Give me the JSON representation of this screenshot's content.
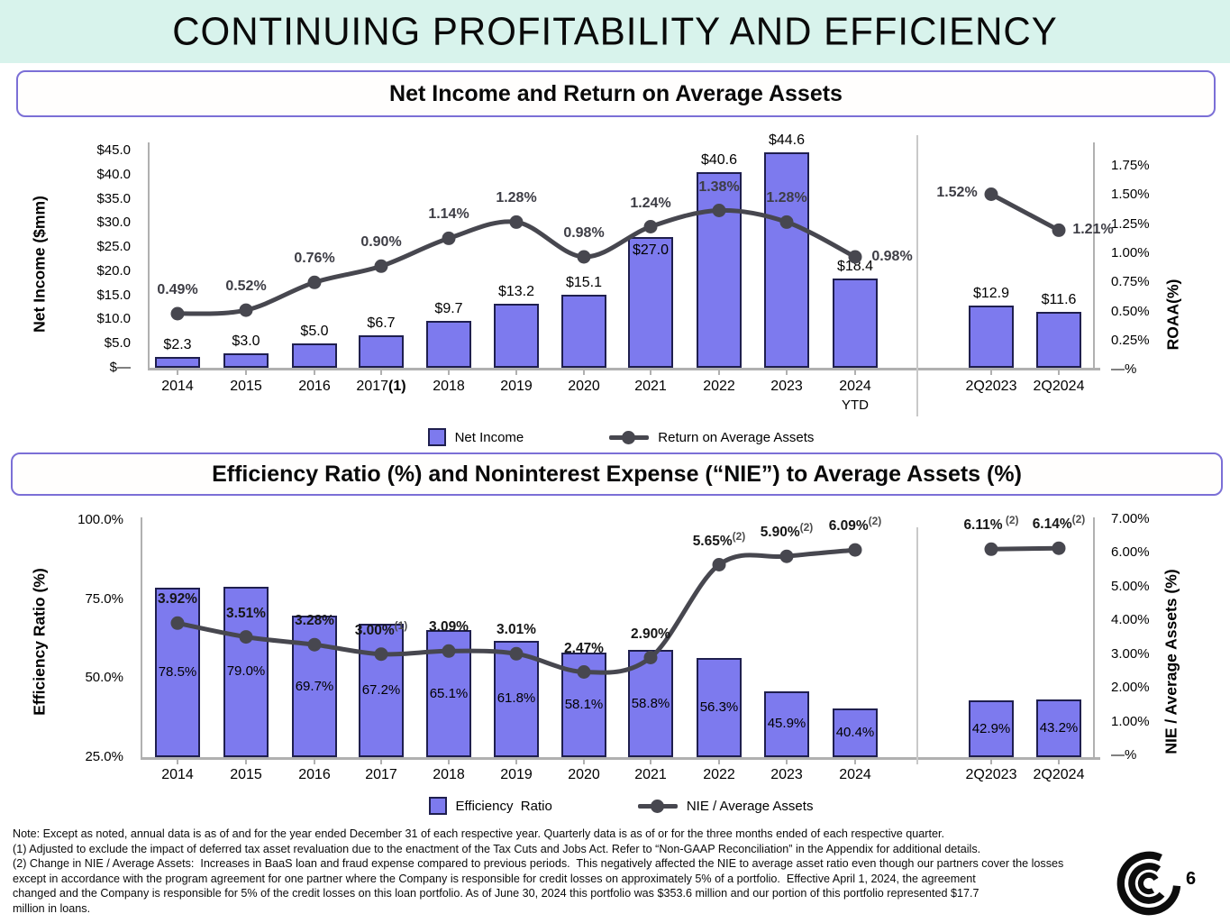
{
  "slide": {
    "title": "CONTINUING PROFITABILITY AND EFFICIENCY",
    "page_number": "6",
    "logo": "concentric-c-logo"
  },
  "colors": {
    "header_bg": "#d8f3ec",
    "box_border": "#7b6fd6",
    "bar_fill": "#7d7aee",
    "bar_border": "#1f1f4e",
    "line_color": "#47474f",
    "axis_color": "#b0b0b0",
    "label_gray": "#3d3d45"
  },
  "chart_data": [
    {
      "type": "bar+line",
      "title": "Net Income and Return on Average Assets",
      "categories": [
        {
          "t": "2014"
        },
        {
          "t": "2015"
        },
        {
          "t": "2016"
        },
        {
          "t": "2017",
          "s": "(1)"
        },
        {
          "t": "2018"
        },
        {
          "t": "2019"
        },
        {
          "t": "2020"
        },
        {
          "t": "2021"
        },
        {
          "t": "2022"
        },
        {
          "t": "2023"
        },
        {
          "t": "2024",
          "sub": "YTD"
        },
        {
          "t": "2Q2023"
        },
        {
          "t": "2Q2024"
        }
      ],
      "bar_series": {
        "name": "Net Income",
        "values": [
          2.3,
          3.0,
          5.0,
          6.7,
          9.7,
          13.2,
          15.1,
          27.0,
          40.6,
          44.6,
          18.4,
          12.9,
          11.6
        ],
        "labels": [
          "$2.3",
          "$3.0",
          "$5.0",
          "$6.7",
          "$9.7",
          "$13.2",
          "$15.1",
          "$27.0",
          "$40.6",
          "$44.6",
          "$18.4",
          "$12.9",
          "$11.6"
        ]
      },
      "line_series": {
        "name": "Return on Average Assets",
        "values": [
          0.49,
          0.52,
          0.76,
          0.9,
          1.14,
          1.28,
          0.98,
          1.24,
          1.38,
          1.28,
          0.98,
          1.52,
          1.21
        ],
        "labels": [
          {
            "t": "0.49%"
          },
          {
            "t": "0.52%"
          },
          {
            "t": "0.76%"
          },
          {
            "t": "0.90%"
          },
          {
            "t": "1.14%"
          },
          {
            "t": "1.28%"
          },
          {
            "t": "0.98%"
          },
          {
            "t": "1.24%"
          },
          {
            "t": "1.38%"
          },
          {
            "t": "1.28%"
          },
          {
            "t": "0.98%"
          },
          {
            "t": "1.52%"
          },
          {
            "t": "1.21%"
          }
        ]
      },
      "left_axis": {
        "label": "Net Income ($mm)",
        "min": 0,
        "max": 45,
        "ticks": [
          "$45.0",
          "$40.0",
          "$35.0",
          "$30.0",
          "$25.0",
          "$20.0",
          "$15.0",
          "$10.0",
          "$5.0",
          "$—"
        ]
      },
      "right_axis": {
        "label": "ROAA(%)",
        "min": 0,
        "max": 1.75,
        "ticks": [
          "1.75%",
          "1.50%",
          "1.25%",
          "1.00%",
          "0.75%",
          "0.50%",
          "0.25%",
          "—%"
        ]
      },
      "legend_position": "bottom"
    },
    {
      "type": "bar+line",
      "title": "Efficiency Ratio (%) and Noninterest Expense (“NIE”) to Average Assets (%)",
      "categories": [
        {
          "t": "2014"
        },
        {
          "t": "2015"
        },
        {
          "t": "2016"
        },
        {
          "t": "2017"
        },
        {
          "t": "2018"
        },
        {
          "t": "2019"
        },
        {
          "t": "2020"
        },
        {
          "t": "2021"
        },
        {
          "t": "2022"
        },
        {
          "t": "2023"
        },
        {
          "t": "2024"
        },
        {
          "t": "2Q2023"
        },
        {
          "t": "2Q2024"
        }
      ],
      "bar_series": {
        "name": "Efficiency  Ratio",
        "values": [
          78.5,
          79.0,
          69.7,
          67.2,
          65.1,
          61.8,
          58.1,
          58.8,
          56.3,
          45.9,
          40.4,
          42.9,
          43.2
        ],
        "labels": [
          "78.5%",
          "79.0%",
          "69.7%",
          "67.2%",
          "65.1%",
          "61.8%",
          "58.1%",
          "58.8%",
          "56.3%",
          "45.9%",
          "40.4%",
          "42.9%",
          "43.2%"
        ]
      },
      "line_series": {
        "name": "NIE / Average Assets",
        "values": [
          3.92,
          3.51,
          3.28,
          3.0,
          3.09,
          3.01,
          2.47,
          2.9,
          5.65,
          5.9,
          6.09,
          6.11,
          6.14
        ],
        "labels": [
          {
            "t": "3.92%"
          },
          {
            "t": "3.51%"
          },
          {
            "t": "3.28%"
          },
          {
            "t": "3.00%",
            "s": "(1)"
          },
          {
            "t": "3.09%"
          },
          {
            "t": "3.01%"
          },
          {
            "t": "2.47%"
          },
          {
            "t": "2.90%"
          },
          {
            "t": "5.65%",
            "s": "(2)"
          },
          {
            "t": "5.90%",
            "s": "(2)"
          },
          {
            "t": "6.09%",
            "s": "(2)"
          },
          {
            "t": "6.11%",
            "s": " (2)"
          },
          {
            "t": "6.14%",
            "s": "(2)"
          }
        ]
      },
      "left_axis": {
        "label": "Efficiency Ratio (%)",
        "min": 25,
        "max": 100,
        "ticks": [
          "100.0%",
          "75.0%",
          "50.0%",
          "25.0%"
        ]
      },
      "right_axis": {
        "label": "NIE / Average Assets (%)",
        "min": 0,
        "max": 7,
        "ticks": [
          "7.00%",
          "6.00%",
          "5.00%",
          "4.00%",
          "3.00%",
          "2.00%",
          "1.00%",
          "—%"
        ]
      },
      "legend_position": "bottom"
    }
  ],
  "notes": [
    "Note: Except as noted, annual data is as of and for the year ended December 31 of each respective year. Quarterly data is as of or for the three months ended of each respective quarter.",
    "(1) Adjusted to exclude the impact of deferred tax asset revaluation due to the enactment of the Tax Cuts and Jobs Act. Refer to “Non-GAAP Reconciliation” in the Appendix for additional details.",
    "(2) Change in NIE / Average Assets:  Increases in BaaS loan and fraud expense compared to previous periods.  This negatively affected the NIE to average asset ratio even though our partners cover the losses",
    "except in accordance with the program agreement for one partner where the Company is responsible for credit losses on approximately 5% of a portfolio.  Effective April 1, 2024, the agreement",
    "changed and the Company is responsible for 5% of the credit losses on this loan portfolio. As of June 30, 2024 this portfolio was $353.6 million and our portion of this portfolio represented $17.7",
    "million in loans."
  ]
}
